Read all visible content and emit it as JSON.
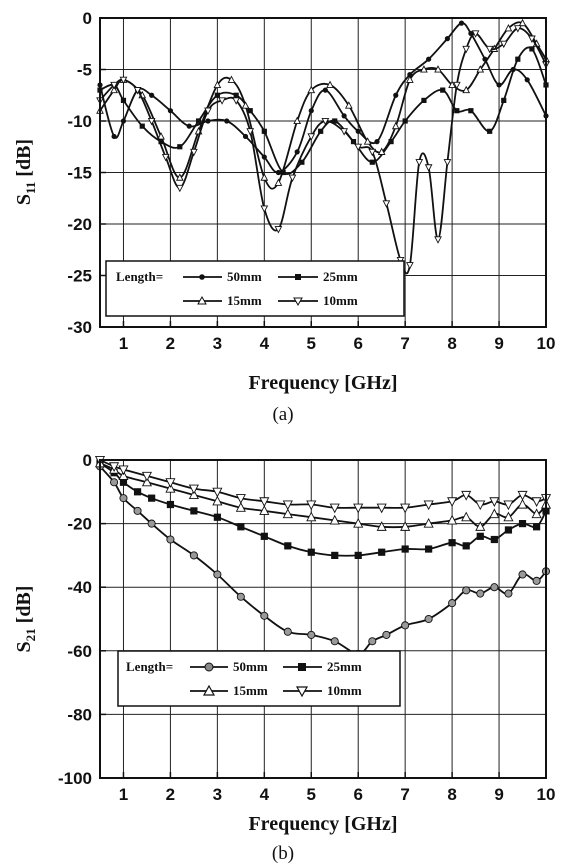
{
  "chart_data": [
    {
      "type": "line",
      "caption": "(a)",
      "xlabel": "Frequency [GHz]",
      "ylabel_main": "S",
      "ylabel_sub": "11",
      "ylabel_unit": " [dB]",
      "xlim": [
        0.5,
        10
      ],
      "ylim": [
        -30,
        0
      ],
      "xticks": [
        1,
        2,
        3,
        4,
        5,
        6,
        7,
        8,
        9,
        10
      ],
      "yticks": [
        0,
        -5,
        -10,
        -15,
        -20,
        -25,
        -30
      ],
      "grid": true,
      "legend_position": "bottom-left",
      "legend_prefix": "Length=",
      "series": [
        {
          "name": "50mm",
          "marker": "dot",
          "x": [
            0.5,
            0.8,
            1.0,
            1.3,
            1.6,
            2.0,
            2.4,
            2.8,
            3.2,
            3.6,
            4.0,
            4.3,
            4.7,
            5.0,
            5.3,
            5.7,
            6.0,
            6.4,
            6.8,
            7.1,
            7.5,
            7.9,
            8.2,
            8.4,
            8.7,
            9.0,
            9.3,
            9.6,
            10.0
          ],
          "y": [
            -6.5,
            -11.5,
            -10,
            -7,
            -7.5,
            -9,
            -10.5,
            -10,
            -10,
            -11.5,
            -13.5,
            -15,
            -13,
            -9,
            -7,
            -9.5,
            -11,
            -12,
            -7.5,
            -5.5,
            -4,
            -2,
            -0.5,
            -1.5,
            -4,
            -6.5,
            -5,
            -6,
            -9.5
          ]
        },
        {
          "name": "25mm",
          "marker": "square",
          "x": [
            0.5,
            0.8,
            1.0,
            1.4,
            1.8,
            2.2,
            2.6,
            3.0,
            3.4,
            3.7,
            4.0,
            4.4,
            4.8,
            5.2,
            5.5,
            5.9,
            6.3,
            6.7,
            7.0,
            7.4,
            7.8,
            8.1,
            8.4,
            8.8,
            9.1,
            9.4,
            9.7,
            10.0
          ],
          "y": [
            -7,
            -6.5,
            -8,
            -10.5,
            -12,
            -12.5,
            -10,
            -7.5,
            -7.5,
            -9,
            -11,
            -15,
            -14,
            -11,
            -10,
            -12,
            -14,
            -12,
            -10,
            -8,
            -7,
            -9,
            -9,
            -11,
            -8,
            -4,
            -3,
            -6.5
          ]
        },
        {
          "name": "15mm",
          "marker": "triangle-up",
          "x": [
            0.5,
            0.8,
            1.0,
            1.4,
            1.8,
            2.2,
            2.6,
            3.0,
            3.3,
            3.6,
            4.0,
            4.3,
            4.7,
            5.0,
            5.4,
            5.8,
            6.2,
            6.5,
            6.8,
            7.1,
            7.4,
            7.7,
            8.0,
            8.3,
            8.6,
            8.9,
            9.2,
            9.5,
            9.8,
            10.0
          ],
          "y": [
            -9,
            -7,
            -6,
            -7.5,
            -11.5,
            -15.5,
            -11,
            -6.5,
            -6,
            -8.5,
            -15.5,
            -16,
            -10,
            -7,
            -6.5,
            -8.5,
            -12,
            -13,
            -10.5,
            -6,
            -5,
            -5,
            -6.5,
            -7,
            -5,
            -3,
            -1,
            -0.5,
            -2.5,
            -4
          ]
        },
        {
          "name": "10mm",
          "marker": "triangle-down",
          "x": [
            0.5,
            0.8,
            1.0,
            1.3,
            1.6,
            1.9,
            2.2,
            2.5,
            2.8,
            3.1,
            3.4,
            3.7,
            4.0,
            4.3,
            4.6,
            5.0,
            5.3,
            5.7,
            6.0,
            6.3,
            6.6,
            6.9,
            7.1,
            7.3,
            7.5,
            7.7,
            7.9,
            8.1,
            8.3,
            8.5,
            8.8,
            9.1,
            9.4,
            9.7,
            10.0
          ],
          "y": [
            -8,
            -6.5,
            -6,
            -7,
            -10,
            -13.5,
            -16.5,
            -13,
            -9,
            -8,
            -8,
            -11,
            -18.5,
            -20.5,
            -15.5,
            -11.5,
            -10,
            -11,
            -12.5,
            -13,
            -18,
            -23.5,
            -24,
            -14,
            -14.5,
            -21.5,
            -14,
            -6.5,
            -3,
            -1.5,
            -3,
            -2.5,
            -1,
            -2,
            -4.5
          ]
        }
      ]
    },
    {
      "type": "line",
      "caption": "(b)",
      "xlabel": "Frequency [GHz]",
      "ylabel_main": "S",
      "ylabel_sub": "21",
      "ylabel_unit": " [dB]",
      "xlim": [
        0.5,
        10
      ],
      "ylim": [
        -100,
        0
      ],
      "xticks": [
        1,
        2,
        3,
        4,
        5,
        6,
        7,
        8,
        9,
        10
      ],
      "yticks": [
        0,
        -20,
        -40,
        -60,
        -80,
        -100
      ],
      "grid": true,
      "legend_position": "bottom-left",
      "legend_prefix": "Length=",
      "series": [
        {
          "name": "50mm",
          "marker": "circle-cross",
          "x": [
            0.5,
            0.8,
            1.0,
            1.3,
            1.6,
            2.0,
            2.5,
            3.0,
            3.5,
            4.0,
            4.5,
            5.0,
            5.5,
            6.0,
            6.3,
            6.6,
            7.0,
            7.5,
            8.0,
            8.3,
            8.6,
            8.9,
            9.2,
            9.5,
            9.8,
            10.0
          ],
          "y": [
            -2,
            -7,
            -12,
            -16,
            -20,
            -25,
            -30,
            -36,
            -43,
            -49,
            -54,
            -55,
            -57,
            -61,
            -57,
            -55,
            -52,
            -50,
            -45,
            -41,
            -42,
            -40,
            -42,
            -36,
            -38,
            -35
          ]
        },
        {
          "name": "25mm",
          "marker": "square",
          "x": [
            0.5,
            0.8,
            1.0,
            1.3,
            1.6,
            2.0,
            2.5,
            3.0,
            3.5,
            4.0,
            4.5,
            5.0,
            5.5,
            6.0,
            6.5,
            7.0,
            7.5,
            8.0,
            8.3,
            8.6,
            8.9,
            9.2,
            9.5,
            9.8,
            10.0
          ],
          "y": [
            -1,
            -4,
            -7,
            -10,
            -12,
            -14,
            -16,
            -18,
            -21,
            -24,
            -27,
            -29,
            -30,
            -30,
            -29,
            -28,
            -28,
            -26,
            -27,
            -24,
            -25,
            -22,
            -20,
            -21,
            -16
          ]
        },
        {
          "name": "15mm",
          "marker": "triangle-up",
          "x": [
            0.5,
            0.8,
            1.0,
            1.5,
            2.0,
            2.5,
            3.0,
            3.5,
            4.0,
            4.5,
            5.0,
            5.5,
            6.0,
            6.5,
            7.0,
            7.5,
            8.0,
            8.3,
            8.6,
            8.9,
            9.2,
            9.5,
            9.8,
            10.0
          ],
          "y": [
            -1,
            -3,
            -5,
            -7,
            -9,
            -11,
            -13,
            -15,
            -16,
            -17,
            -18,
            -19,
            -20,
            -21,
            -21,
            -20,
            -19,
            -18,
            -21,
            -17,
            -18,
            -14,
            -17,
            -14
          ]
        },
        {
          "name": "10mm",
          "marker": "triangle-down",
          "x": [
            0.5,
            0.8,
            1.0,
            1.5,
            2.0,
            2.5,
            3.0,
            3.5,
            4.0,
            4.5,
            5.0,
            5.5,
            6.0,
            6.5,
            7.0,
            7.5,
            8.0,
            8.3,
            8.6,
            8.9,
            9.2,
            9.5,
            9.8,
            10.0
          ],
          "y": [
            0,
            -2,
            -3,
            -5,
            -7,
            -9,
            -10,
            -12,
            -13,
            -14,
            -14,
            -15,
            -15,
            -15,
            -15,
            -14,
            -13,
            -11,
            -14,
            -13,
            -14,
            -11,
            -13,
            -12
          ]
        }
      ]
    }
  ]
}
